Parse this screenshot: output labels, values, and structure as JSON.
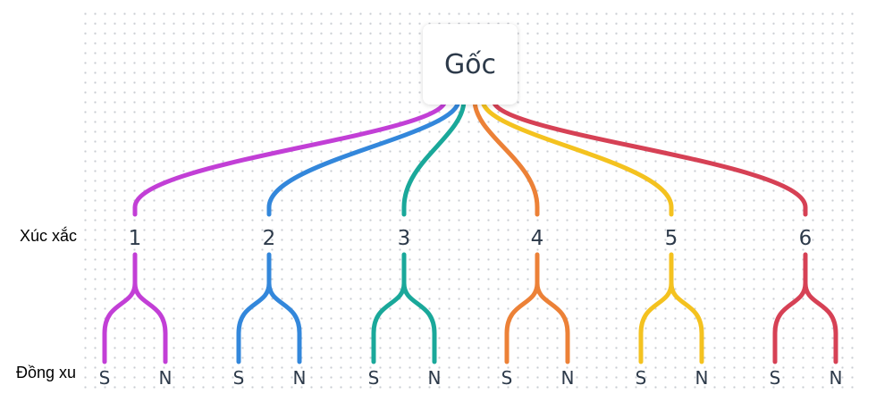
{
  "root": {
    "label": "Gốc"
  },
  "row_labels": {
    "dice": "Xúc xắc",
    "coin": "Đồng xu"
  },
  "dice": [
    {
      "label": "1",
      "color": "#c23fd6"
    },
    {
      "label": "2",
      "color": "#3387db"
    },
    {
      "label": "3",
      "color": "#1aa89a"
    },
    {
      "label": "4",
      "color": "#ec8137"
    },
    {
      "label": "5",
      "color": "#f4c21f"
    },
    {
      "label": "6",
      "color": "#d64155"
    }
  ],
  "coin_outcomes": [
    "S",
    "N"
  ]
}
